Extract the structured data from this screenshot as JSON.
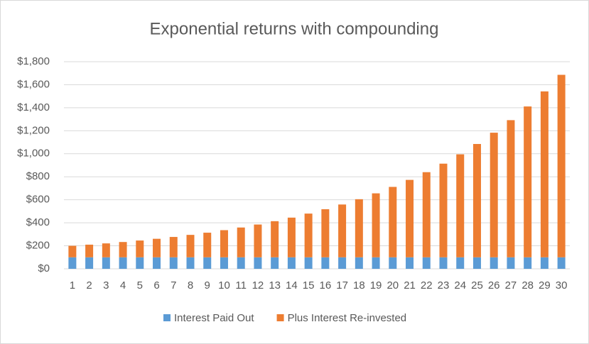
{
  "chart_data": {
    "type": "stacked_bar",
    "title": "Exponential returns with compounding",
    "categories": [
      "1",
      "2",
      "3",
      "4",
      "5",
      "6",
      "7",
      "8",
      "9",
      "10",
      "11",
      "12",
      "13",
      "14",
      "15",
      "16",
      "17",
      "18",
      "19",
      "20",
      "21",
      "22",
      "23",
      "24",
      "25",
      "26",
      "27",
      "28",
      "29",
      "30"
    ],
    "series": [
      {
        "name": "Interest Paid Out",
        "color": "#5b9bd5",
        "values": [
          100,
          100,
          100,
          100,
          100,
          100,
          100,
          100,
          100,
          100,
          100,
          100,
          100,
          100,
          100,
          100,
          100,
          100,
          100,
          100,
          100,
          100,
          100,
          100,
          100,
          100,
          100,
          100,
          100,
          100
        ]
      },
      {
        "name": "Plus Interest Re-invested",
        "color": "#ed7d31",
        "values": [
          100,
          110,
          121,
          133,
          146,
          161,
          177,
          195,
          214,
          236,
          259,
          285,
          314,
          345,
          380,
          418,
          459,
          505,
          556,
          612,
          673,
          740,
          814,
          895,
          985,
          1083,
          1192,
          1311,
          1442,
          1586
        ]
      }
    ],
    "ylim": [
      0,
      1800
    ],
    "yticks": [
      {
        "value": 0,
        "label": "$0"
      },
      {
        "value": 200,
        "label": "$200"
      },
      {
        "value": 400,
        "label": "$400"
      },
      {
        "value": 600,
        "label": "$600"
      },
      {
        "value": 800,
        "label": "$800"
      },
      {
        "value": 1000,
        "label": "$1,000"
      },
      {
        "value": 1200,
        "label": "$1,200"
      },
      {
        "value": 1400,
        "label": "$1,400"
      },
      {
        "value": 1600,
        "label": "$1,600"
      },
      {
        "value": 1800,
        "label": "$1,800"
      }
    ],
    "grid": true,
    "legend": "bottom"
  }
}
